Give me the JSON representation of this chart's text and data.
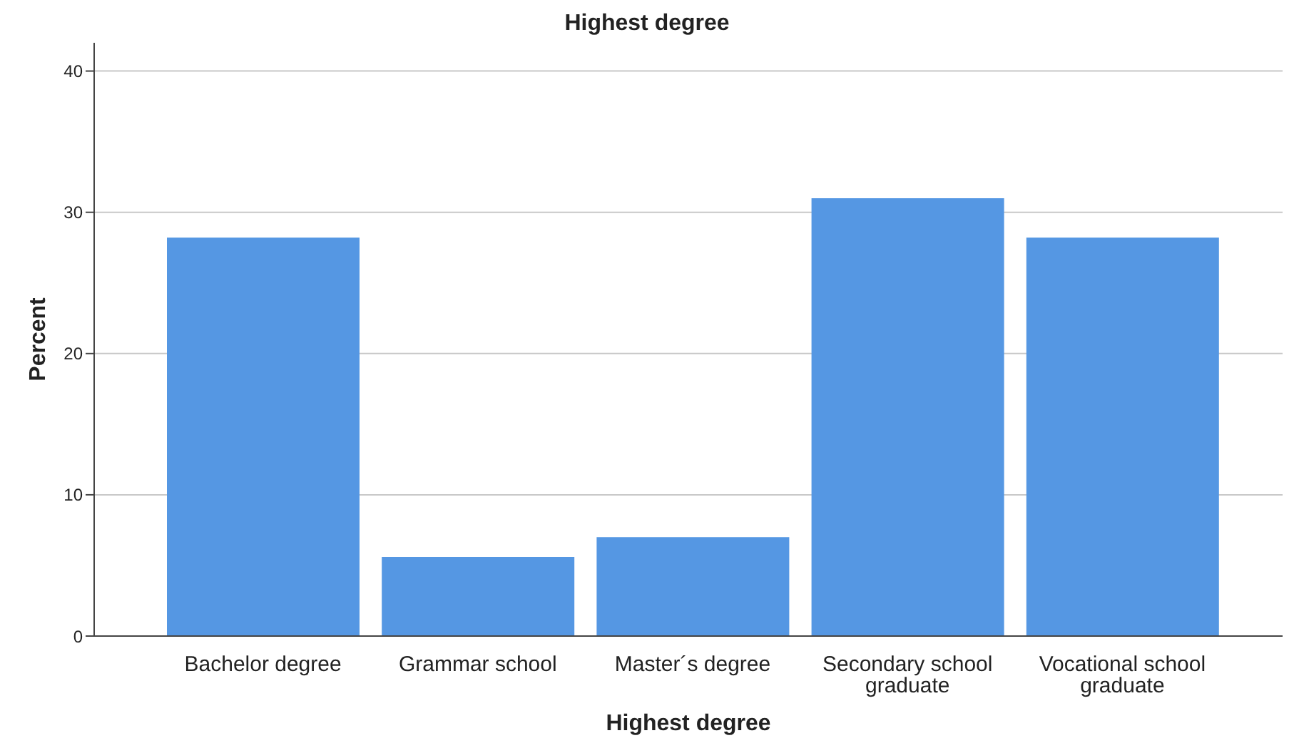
{
  "chart_data": {
    "type": "bar",
    "title": "Highest degree",
    "xlabel": "Highest degree",
    "ylabel": "Percent",
    "categories": [
      "Bachelor degree",
      "Grammar school",
      "Master´s degree",
      "Secondary school graduate",
      "Vocational school graduate"
    ],
    "values": [
      28.2,
      5.6,
      7.0,
      31.0,
      28.2
    ],
    "color": "#5597e3",
    "ylim": [
      0,
      42
    ],
    "yticks": [
      0,
      10,
      20,
      30,
      40
    ],
    "grid": "y"
  }
}
